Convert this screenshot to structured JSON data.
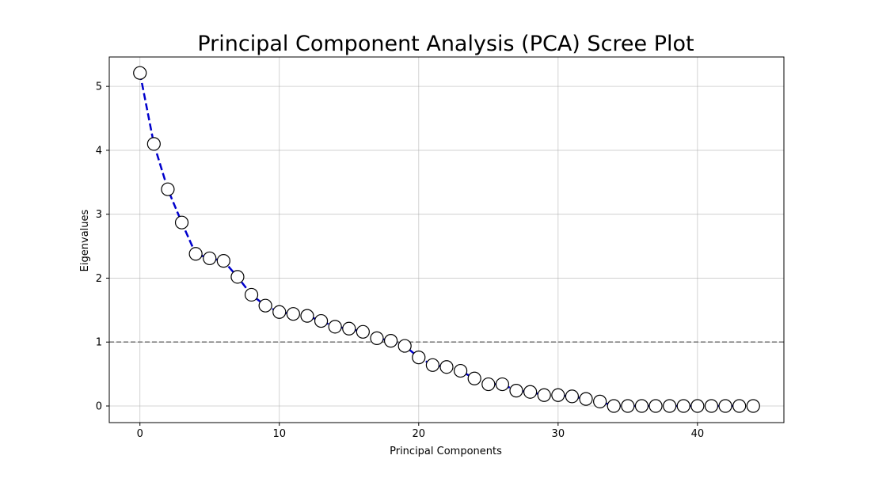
{
  "chart_data": {
    "type": "line",
    "title": "Principal Component Analysis (PCA) Scree Plot",
    "xlabel": "Principal Components",
    "ylabel": "Eigenvalues",
    "xlim": [
      -2.2,
      46.2
    ],
    "ylim": [
      -0.26,
      5.46
    ],
    "xticks": [
      0,
      10,
      20,
      30,
      40
    ],
    "yticks": [
      0,
      1,
      2,
      3,
      4,
      5
    ],
    "grid": true,
    "reference_line": {
      "y": 1,
      "style": "dashed",
      "color": "#808080"
    },
    "series": [
      {
        "line_color": "#0000cc",
        "line_style": "dashed",
        "marker": "circle",
        "marker_fill": "#ffffff",
        "marker_edge": "#000000",
        "x": [
          0,
          1,
          2,
          3,
          4,
          5,
          6,
          7,
          8,
          9,
          10,
          11,
          12,
          13,
          14,
          15,
          16,
          17,
          18,
          19,
          20,
          21,
          22,
          23,
          24,
          25,
          26,
          27,
          28,
          29,
          30,
          31,
          32,
          33,
          34,
          35,
          36,
          37,
          38,
          39,
          40,
          41,
          42,
          43,
          44
        ],
        "values": [
          5.21,
          4.1,
          3.39,
          2.87,
          2.38,
          2.31,
          2.27,
          2.02,
          1.74,
          1.57,
          1.47,
          1.44,
          1.41,
          1.33,
          1.24,
          1.21,
          1.16,
          1.06,
          1.02,
          0.94,
          0.76,
          0.64,
          0.61,
          0.55,
          0.43,
          0.34,
          0.34,
          0.24,
          0.22,
          0.17,
          0.17,
          0.15,
          0.11,
          0.07,
          0.0,
          0.0,
          0.0,
          0.0,
          0.0,
          0.0,
          0.0,
          0.0,
          0.0,
          0.0,
          0.0
        ]
      }
    ]
  }
}
